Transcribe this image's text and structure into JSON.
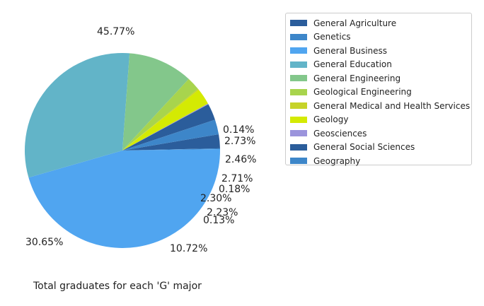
{
  "chart_data": {
    "type": "pie",
    "caption": "Total graduates for each 'G' major",
    "labels": [
      "General Agriculture",
      "Genetics",
      "General Business",
      "General Education",
      "General Engineering",
      "Geological Engineering",
      "General Medical and Health Services",
      "Geology",
      "Geosciences",
      "General Social Sciences",
      "Geography"
    ],
    "values": [
      2.3,
      0.13,
      45.77,
      30.65,
      10.72,
      2.23,
      0.18,
      2.71,
      0.14,
      2.73,
      2.46
    ],
    "pct_labels": [
      "2.30%",
      "0.13%",
      "45.77%",
      "30.65%",
      "10.72%",
      "2.23%",
      "0.18%",
      "2.71%",
      "0.14%",
      "2.73%",
      "2.46%"
    ],
    "colors": [
      "#2b5d9b",
      "#3d86c9",
      "#50a5f0",
      "#62b4c8",
      "#83c78b",
      "#a8d44d",
      "#c6d329",
      "#d4ea03",
      "#9b94dc",
      "#2b5d9b",
      "#3d86c9"
    ],
    "legend_placement": "upper-right"
  }
}
